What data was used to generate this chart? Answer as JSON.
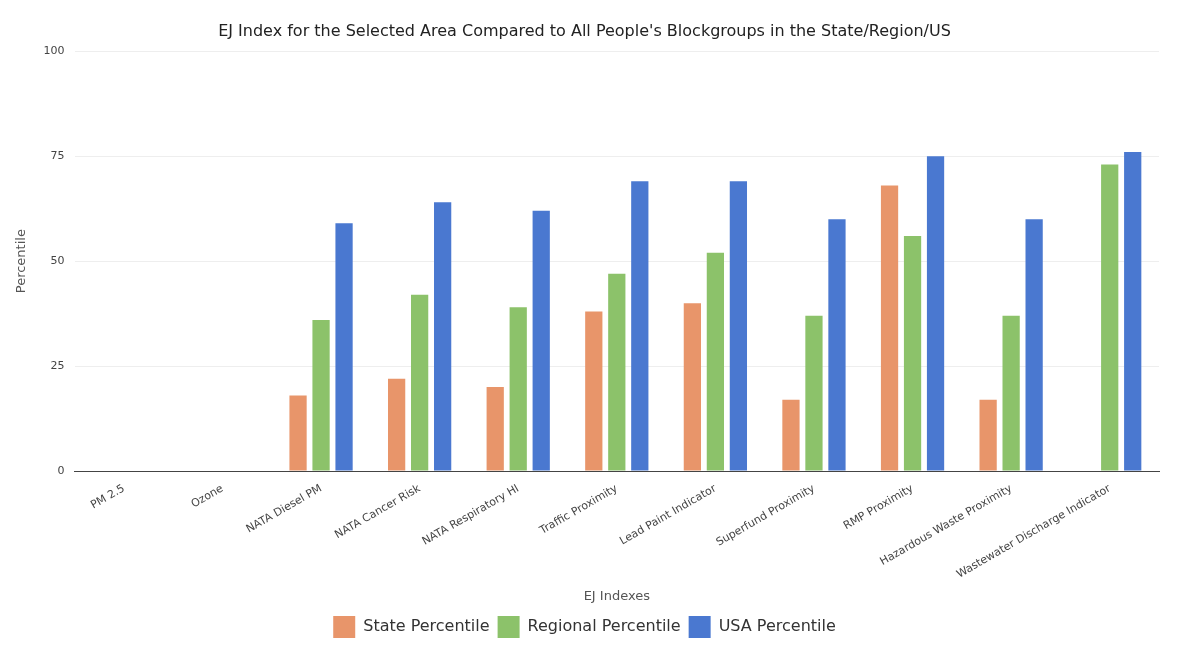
{
  "chart_data": {
    "type": "bar",
    "title": "EJ Index for the Selected Area Compared to All People's Blockgroups in the State/Region/US",
    "xlabel": "EJ Indexes",
    "ylabel": "Percentile",
    "categories": [
      "PM 2.5",
      "Ozone",
      "NATA Diesel PM",
      "NATA Cancer Risk",
      "NATA Respiratory HI",
      "Traffic Proximity",
      "Lead Paint Indicator",
      "Superfund Proximity",
      "RMP Proximity",
      "Hazardous Waste Proximity",
      "Wastewater Discharge Indicator"
    ],
    "series": [
      {
        "name": "State Percentile",
        "color": "#e8956a",
        "values": [
          null,
          null,
          18,
          22,
          20,
          38,
          40,
          17,
          68,
          17,
          null
        ]
      },
      {
        "name": "Regional Percentile",
        "color": "#8cc26a",
        "values": [
          null,
          null,
          36,
          42,
          39,
          47,
          52,
          37,
          56,
          37,
          73
        ]
      },
      {
        "name": "USA Percentile",
        "color": "#4a78d0",
        "values": [
          null,
          null,
          59,
          64,
          62,
          69,
          69,
          60,
          75,
          60,
          76
        ]
      }
    ],
    "ylim": [
      0,
      100
    ],
    "yticks": [
      0,
      25,
      50,
      75,
      100
    ],
    "grid": "y",
    "legend": "bottom"
  }
}
